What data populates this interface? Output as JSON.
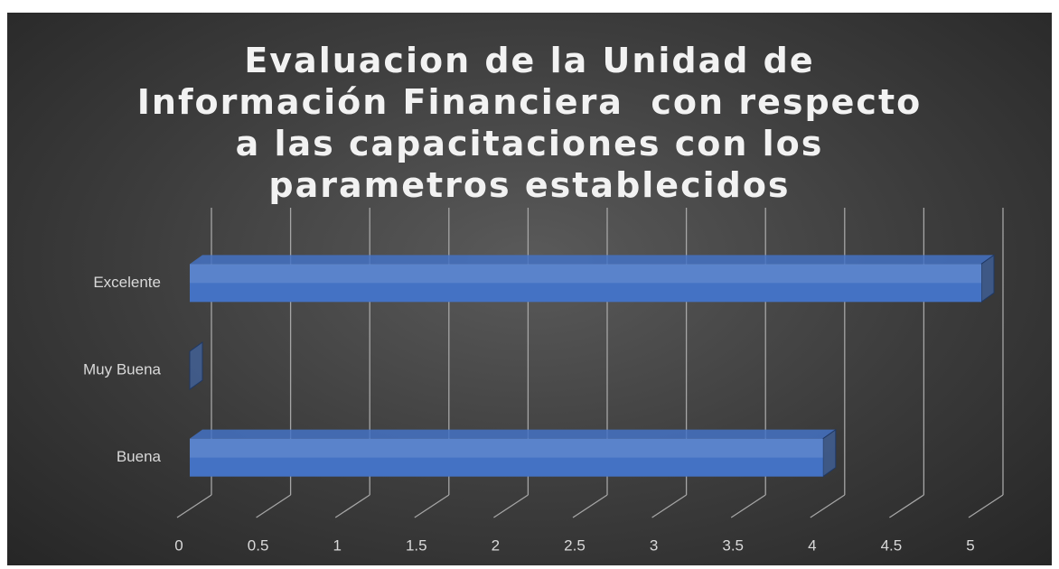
{
  "chart_data": {
    "type": "bar3d_horizontal",
    "title": "Evaluacion de la Unidad de Información Financiera  con respecto a las capacitaciones con los parametros establecidos",
    "categories": [
      "Excelente",
      "Muy Buena",
      "Buena"
    ],
    "values": [
      5,
      0,
      4
    ],
    "color": "#4472c4",
    "xlim": [
      0,
      5
    ],
    "xticks": [
      0,
      0.5,
      1,
      1.5,
      2,
      2.5,
      3,
      3.5,
      4,
      4.5,
      5
    ],
    "grid": true
  }
}
